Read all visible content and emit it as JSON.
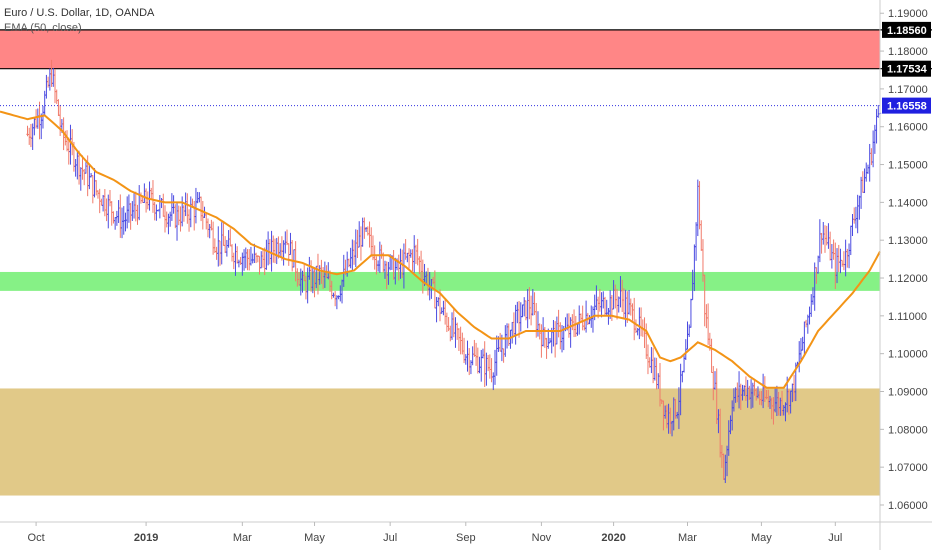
{
  "legend": {
    "symbol_title": "Euro / U.S. Dollar, 1D, OANDA",
    "indicator": "EMA (50, close)"
  },
  "colors": {
    "up_bar": "#4a4ae0",
    "down_bar": "#f07a6a",
    "ema": "#f39416",
    "resistance_zone": "#ff8080",
    "support_zone_mid": "#80f080",
    "demand_zone": "#dfc682",
    "current_price_line": "#3030e0",
    "axis_text": "#444444",
    "grid_tick": "#bbbbbb"
  },
  "chart_data": {
    "type": "ohlc",
    "instrument": "Euro / U.S. Dollar",
    "timeframe": "1D",
    "source": "OANDA",
    "indicator": "EMA (50, close)",
    "y_range": [
      1.0555,
      1.1935
    ],
    "y_ticks": [
      "1.19000",
      "1.18000",
      "1.17000",
      "1.16000",
      "1.15000",
      "1.14000",
      "1.13000",
      "1.12000",
      "1.11000",
      "1.10000",
      "1.09000",
      "1.08000",
      "1.07000",
      "1.06000"
    ],
    "x_labels": [
      {
        "label": "Oct",
        "bold": false,
        "t": 5
      },
      {
        "label": "2019",
        "bold": true,
        "t": 69
      },
      {
        "label": "Mar",
        "bold": false,
        "t": 125
      },
      {
        "label": "May",
        "bold": false,
        "t": 167
      },
      {
        "label": "Jul",
        "bold": false,
        "t": 211
      },
      {
        "label": "Sep",
        "bold": false,
        "t": 255
      },
      {
        "label": "Nov",
        "bold": false,
        "t": 299
      },
      {
        "label": "2020",
        "bold": true,
        "t": 341
      },
      {
        "label": "Mar",
        "bold": false,
        "t": 384
      },
      {
        "label": "May",
        "bold": false,
        "t": 427
      },
      {
        "label": "Jul",
        "bold": false,
        "t": 470
      }
    ],
    "t_range": [
      -16,
      496
    ],
    "zones": [
      {
        "name": "resistance",
        "low": 1.17534,
        "high": 1.1856,
        "color": "#ff8080",
        "border": "#000000"
      },
      {
        "name": "middle",
        "low": 1.1166,
        "high": 1.1216,
        "color": "#80f080",
        "border": null
      },
      {
        "name": "demand",
        "low": 1.0625,
        "high": 1.0908,
        "color": "#dfc682",
        "border": null
      }
    ],
    "price_labels": [
      {
        "value": "1.18560",
        "price": 1.1856,
        "bg": "#000000",
        "fg": "#ffffff"
      },
      {
        "value": "1.17534",
        "price": 1.17534,
        "bg": "#000000",
        "fg": "#ffffff"
      },
      {
        "value": "1.16558",
        "price": 1.16558,
        "bg": "#2020e0",
        "fg": "#ffffff"
      }
    ],
    "current_price": 1.16558,
    "close_keypoints": [
      [
        0,
        1.158
      ],
      [
        8,
        1.164
      ],
      [
        14,
        1.174
      ],
      [
        20,
        1.158
      ],
      [
        30,
        1.15
      ],
      [
        40,
        1.143
      ],
      [
        55,
        1.135
      ],
      [
        70,
        1.141
      ],
      [
        85,
        1.136
      ],
      [
        100,
        1.139
      ],
      [
        110,
        1.129
      ],
      [
        125,
        1.126
      ],
      [
        135,
        1.124
      ],
      [
        150,
        1.131
      ],
      [
        160,
        1.118
      ],
      [
        170,
        1.121
      ],
      [
        180,
        1.116
      ],
      [
        195,
        1.132
      ],
      [
        205,
        1.125
      ],
      [
        215,
        1.122
      ],
      [
        225,
        1.127
      ],
      [
        240,
        1.112
      ],
      [
        255,
        1.1
      ],
      [
        270,
        1.096
      ],
      [
        283,
        1.108
      ],
      [
        292,
        1.113
      ],
      [
        300,
        1.104
      ],
      [
        315,
        1.106
      ],
      [
        330,
        1.112
      ],
      [
        345,
        1.115
      ],
      [
        355,
        1.108
      ],
      [
        365,
        1.095
      ],
      [
        372,
        1.083
      ],
      [
        378,
        1.086
      ],
      [
        385,
        1.105
      ],
      [
        390,
        1.143
      ],
      [
        394,
        1.112
      ],
      [
        400,
        1.09
      ],
      [
        405,
        1.068
      ],
      [
        410,
        1.088
      ],
      [
        418,
        1.091
      ],
      [
        428,
        1.088
      ],
      [
        438,
        1.087
      ],
      [
        445,
        1.09
      ],
      [
        455,
        1.112
      ],
      [
        462,
        1.133
      ],
      [
        470,
        1.123
      ],
      [
        476,
        1.126
      ],
      [
        483,
        1.14
      ],
      [
        490,
        1.151
      ],
      [
        496,
        1.166
      ]
    ],
    "ema_keypoints": [
      [
        -16,
        1.164
      ],
      [
        0,
        1.162
      ],
      [
        10,
        1.163
      ],
      [
        20,
        1.159
      ],
      [
        30,
        1.153
      ],
      [
        40,
        1.148
      ],
      [
        50,
        1.146
      ],
      [
        60,
        1.143
      ],
      [
        70,
        1.141
      ],
      [
        80,
        1.14
      ],
      [
        90,
        1.14
      ],
      [
        100,
        1.138
      ],
      [
        110,
        1.136
      ],
      [
        120,
        1.133
      ],
      [
        130,
        1.129
      ],
      [
        140,
        1.127
      ],
      [
        150,
        1.125
      ],
      [
        160,
        1.124
      ],
      [
        170,
        1.122
      ],
      [
        180,
        1.121
      ],
      [
        190,
        1.122
      ],
      [
        200,
        1.126
      ],
      [
        210,
        1.126
      ],
      [
        220,
        1.123
      ],
      [
        230,
        1.119
      ],
      [
        240,
        1.116
      ],
      [
        250,
        1.111
      ],
      [
        260,
        1.107
      ],
      [
        270,
        1.104
      ],
      [
        280,
        1.104
      ],
      [
        290,
        1.106
      ],
      [
        300,
        1.106
      ],
      [
        310,
        1.106
      ],
      [
        320,
        1.108
      ],
      [
        330,
        1.11
      ],
      [
        340,
        1.11
      ],
      [
        350,
        1.109
      ],
      [
        360,
        1.106
      ],
      [
        368,
        1.099
      ],
      [
        374,
        1.098
      ],
      [
        380,
        1.099
      ],
      [
        390,
        1.103
      ],
      [
        400,
        1.101
      ],
      [
        410,
        1.098
      ],
      [
        420,
        1.094
      ],
      [
        430,
        1.091
      ],
      [
        440,
        1.091
      ],
      [
        450,
        1.098
      ],
      [
        460,
        1.106
      ],
      [
        470,
        1.111
      ],
      [
        480,
        1.116
      ],
      [
        490,
        1.122
      ],
      [
        496,
        1.127
      ]
    ]
  }
}
